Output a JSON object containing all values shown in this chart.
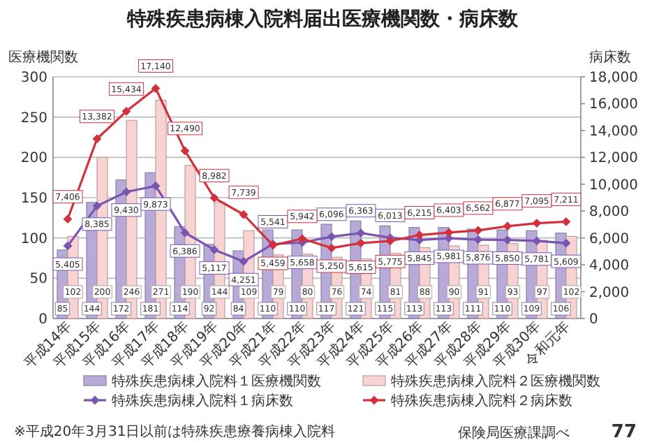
{
  "chart_data": {
    "type": "bar",
    "title": "特殊疾患病棟入院料届出医療機関数・病床数",
    "ylabel": "医療機関数",
    "y2label": "病床数",
    "categories": [
      "平成14年",
      "平成15年",
      "平成16年",
      "平成17年",
      "平成18年",
      "平成19年",
      "平成20年",
      "平成21年",
      "平成22年",
      "平成23年",
      "平成24年",
      "平成25年",
      "平成26年",
      "平成27年",
      "平成28年",
      "平成29年",
      "平成30年",
      "令和元年"
    ],
    "series": [
      {
        "name": "特殊疾患病棟入院料１医療機関数",
        "type": "bar",
        "color": "#b7aad8",
        "values": [
          85,
          144,
          172,
          181,
          114,
          92,
          84,
          110,
          110,
          117,
          121,
          115,
          113,
          113,
          111,
          110,
          109,
          106
        ]
      },
      {
        "name": "特殊疾患病棟入院料２医療機関数",
        "type": "bar",
        "color": "#f7d3d3",
        "values": [
          102,
          200,
          246,
          271,
          190,
          144,
          109,
          79,
          80,
          76,
          74,
          81,
          88,
          90,
          91,
          93,
          97,
          102
        ]
      },
      {
        "name": "特殊疾患病棟入院料１病床数",
        "type": "line",
        "axis": "y2",
        "color": "#7a55b0",
        "values": [
          5405,
          8385,
          9430,
          9873,
          6386,
          5117,
          4251,
          5541,
          5658,
          6096,
          6363,
          6013,
          5845,
          5981,
          5876,
          5850,
          5781,
          5609
        ],
        "value_labels": [
          "5,405",
          "8,385",
          "9,430",
          "9,873",
          "6,386",
          "5,117",
          "4,251",
          "5,541",
          "5,658",
          "6,096",
          "6,363",
          "6,013",
          "5,845",
          "5,981",
          "5,876",
          "5,850",
          "5,781",
          "5,609"
        ]
      },
      {
        "name": "特殊疾患病棟入院料２病床数",
        "type": "line",
        "axis": "y2",
        "color": "#d2303c",
        "values": [
          7406,
          13382,
          15434,
          17140,
          12490,
          8982,
          7739,
          5459,
          5942,
          5250,
          5615,
          5775,
          6215,
          6403,
          6562,
          6877,
          7095,
          7211
        ],
        "value_labels": [
          "7,406",
          "13,382",
          "15,434",
          "17,140",
          "12,490",
          "8,982",
          "7,739",
          "5,459",
          "5,942",
          "5,250",
          "5,615",
          "5,775",
          "6,215",
          "6,403",
          "6,562",
          "6,877",
          "7,095",
          "7,211"
        ]
      }
    ],
    "ylim": [
      0,
      300
    ],
    "yticks": [
      0,
      50,
      100,
      150,
      200,
      250,
      300
    ],
    "y2lim": [
      0,
      18000
    ],
    "y2ticks": [
      {
        "value": 0,
        "label": "0"
      },
      {
        "value": 2000,
        "label": "2,000"
      },
      {
        "value": 4000,
        "label": "4,000"
      },
      {
        "value": 6000,
        "label": "6,000"
      },
      {
        "value": 8000,
        "label": "8,000"
      },
      {
        "value": 10000,
        "label": "10,000"
      },
      {
        "value": 12000,
        "label": "12,000"
      },
      {
        "value": 14000,
        "label": "14,000"
      },
      {
        "value": 16000,
        "label": "16,000"
      },
      {
        "value": 18000,
        "label": "18,000"
      }
    ],
    "grid": "y",
    "legend": "bottom",
    "marker": "diamond",
    "data_labels": true,
    "annotations": [
      "※平成20年3月31日以前は特殊疾患療養病棟入院料",
      "保険局医療課調べ",
      "77"
    ]
  }
}
